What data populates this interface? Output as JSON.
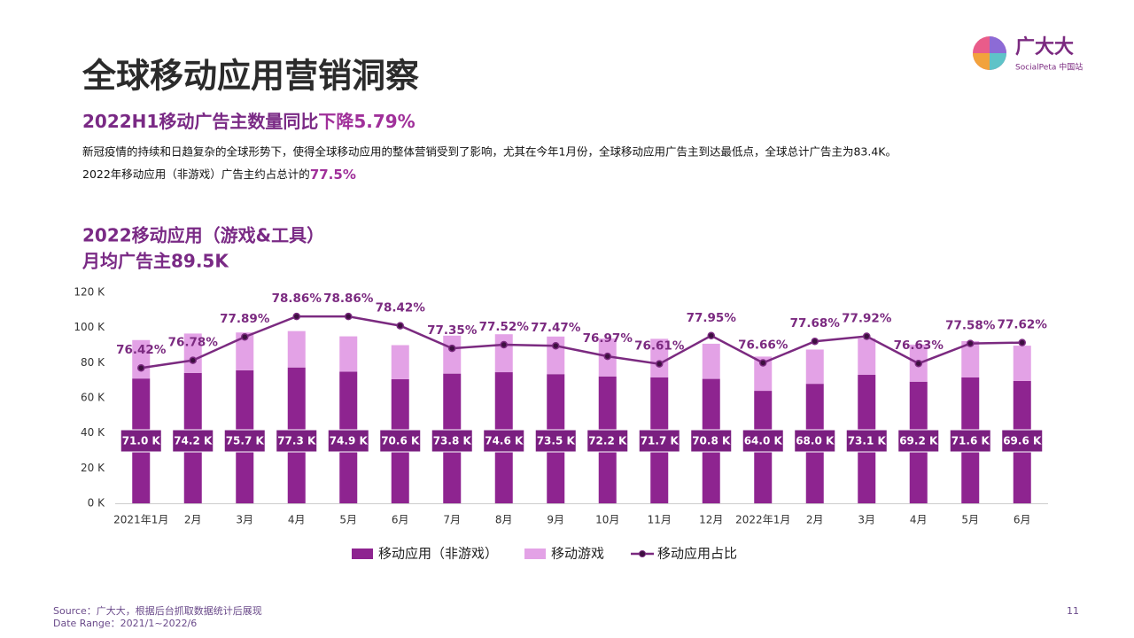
{
  "header": {
    "title": "全球移动应用营销洞察",
    "subtitle": "2022H1移动广告主数量同比",
    "subtitle_highlight": "下降5.79%",
    "paragraph1": "新冠疫情的持续和日趋复杂的全球形势下，使得全球移动应用的整体营销受到了影响，尤其在今年1月份，全球移动应用广告主到达最低点，全球总计广告主为83.4K。",
    "paragraph2": "2022年移动应用（非游戏）广告主约占总计的",
    "paragraph2_highlight": "77.5%"
  },
  "logo": {
    "name": "广大大",
    "sub": "SocialPeta 中国站"
  },
  "footer": {
    "source": "Source：广大大，根据后台抓取数据统计后展现",
    "date_range": "Date Range：2021/1~2022/6",
    "page": "11"
  },
  "chart_data": {
    "type": "bar",
    "title": "2022移动应用（游戏&工具）",
    "subtitle": "月均广告主89.5K",
    "categories": [
      "2021年1月",
      "2月",
      "3月",
      "4月",
      "5月",
      "6月",
      "7月",
      "8月",
      "9月",
      "10月",
      "11月",
      "12月",
      "2022年1月",
      "2月",
      "3月",
      "4月",
      "5月",
      "6月"
    ],
    "series": [
      {
        "name": "移动应用（非游戏）",
        "type": "bar",
        "color": "#8e2490",
        "values": [
          71.0,
          74.2,
          75.7,
          77.3,
          74.9,
          70.6,
          73.8,
          74.6,
          73.5,
          72.2,
          71.7,
          70.8,
          64.0,
          68.0,
          73.1,
          69.2,
          71.6,
          69.6
        ],
        "value_labels": [
          "71.0 K",
          "74.2 K",
          "75.7 K",
          "77.3 K",
          "74.9 K",
          "70.6 K",
          "73.8 K",
          "74.6 K",
          "73.5 K",
          "72.2 K",
          "71.7 K",
          "70.8 K",
          "64.0 K",
          "68.0 K",
          "73.1 K",
          "69.2 K",
          "71.6 K",
          "69.6 K"
        ]
      },
      {
        "name": "移动游戏",
        "type": "bar",
        "color": "#e3a2e6",
        "values": [
          21.9,
          22.4,
          21.5,
          20.7,
          20.1,
          19.4,
          21.6,
          21.6,
          21.4,
          21.6,
          21.9,
          20.0,
          19.5,
          19.5,
          20.7,
          21.1,
          20.7,
          20.1
        ]
      },
      {
        "name": "移动应用占比",
        "type": "line",
        "axis": "y2",
        "color": "#7b2a80",
        "values": [
          76.42,
          76.78,
          77.89,
          78.86,
          78.86,
          78.42,
          77.35,
          77.52,
          77.47,
          76.97,
          76.61,
          77.95,
          76.66,
          77.68,
          77.92,
          76.63,
          77.58,
          77.62
        ],
        "value_labels": [
          "76.42%",
          "76.78%",
          "77.89%",
          "78.86%",
          "78.86%",
          "78.42%",
          "77.35%",
          "77.52%",
          "77.47%",
          "76.97%",
          "76.61%",
          "77.95%",
          "76.66%",
          "77.68%",
          "77.92%",
          "76.63%",
          "77.58%",
          "77.62%"
        ]
      }
    ],
    "ylim": [
      0,
      120
    ],
    "yticks": [
      {
        "value": 0,
        "label": "0 K"
      },
      {
        "value": 20,
        "label": "20 K"
      },
      {
        "value": 40,
        "label": "40 K"
      },
      {
        "value": 60,
        "label": "60 K"
      },
      {
        "value": 80,
        "label": "80 K"
      },
      {
        "value": 100,
        "label": "100 K"
      },
      {
        "value": 120,
        "label": "120 K"
      }
    ],
    "y2lim": [
      70,
      80
    ],
    "grid": false,
    "legend": "bottom"
  }
}
